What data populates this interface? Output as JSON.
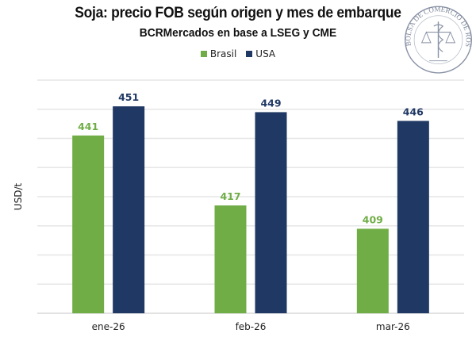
{
  "chart_data": {
    "type": "bar",
    "title": "Soja: precio FOB según origen y mes de embarque",
    "subtitle": "BCRMercados en base a LSEG y CME",
    "xlabel": "",
    "ylabel": "USD/t",
    "categories": [
      "ene-26",
      "feb-26",
      "mar-26"
    ],
    "series": [
      {
        "name": "Brasil",
        "color": "#70AD47",
        "values": [
          441,
          417,
          409
        ]
      },
      {
        "name": "USA",
        "color": "#203864",
        "values": [
          451,
          449,
          446
        ]
      }
    ],
    "ylim": [
      380,
      460
    ],
    "ystep": 10,
    "grid": true,
    "show_y_tick_labels": false,
    "legend": "top-center",
    "data_labels": true
  },
  "watermark": {
    "text": "BOLSA DE COMERCIO DE ROSARIO",
    "icon": "seal-logo-icon"
  }
}
